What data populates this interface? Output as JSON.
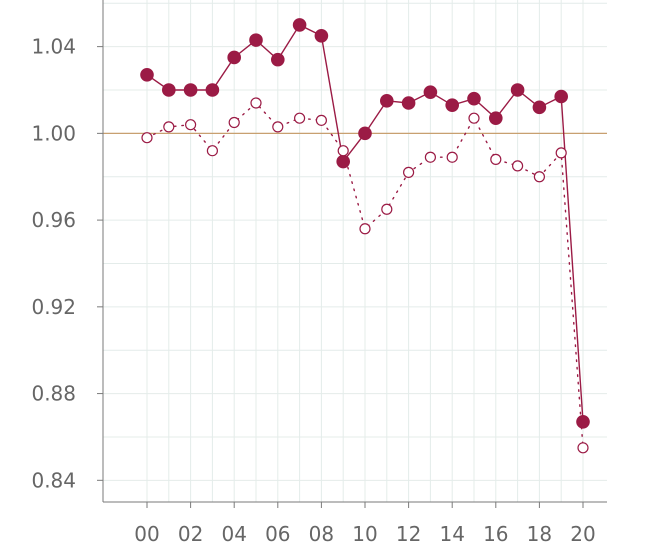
{
  "chart_data": {
    "type": "line",
    "x": [
      "2000",
      "2001",
      "2002",
      "2003",
      "2004",
      "2005",
      "2006",
      "2007",
      "2008",
      "2009",
      "2010",
      "2011",
      "2012",
      "2013",
      "2014",
      "2015",
      "2016",
      "2017",
      "2018",
      "2019",
      "2020"
    ],
    "x_tick_labels": [
      "00",
      "02",
      "04",
      "06",
      "08",
      "10",
      "12",
      "14",
      "16",
      "18",
      "20"
    ],
    "y_tick_labels": [
      "1.04",
      "1.00",
      "0.96",
      "0.92",
      "0.88",
      "0.84"
    ],
    "ylim": [
      0.83,
      1.0615
    ],
    "reference_line": 1.0,
    "grid": true,
    "series": [
      {
        "style": "solid",
        "marker": "filled-circle",
        "values": [
          1.027,
          1.02,
          1.02,
          1.02,
          1.035,
          1.043,
          1.034,
          1.05,
          1.045,
          0.987,
          1.0,
          1.015,
          1.014,
          1.019,
          1.013,
          1.016,
          1.007,
          1.02,
          1.012,
          1.017,
          0.867
        ]
      },
      {
        "style": "dotted",
        "marker": "open-circle",
        "values": [
          0.998,
          1.003,
          1.004,
          0.992,
          1.005,
          1.014,
          1.003,
          1.007,
          1.006,
          0.992,
          0.956,
          0.965,
          0.982,
          0.989,
          0.989,
          1.007,
          0.988,
          0.985,
          0.98,
          0.991,
          0.855
        ]
      }
    ]
  },
  "colors": {
    "series": "#9b1b45",
    "reference": "#c8a070",
    "grid": "#e4ecea",
    "axis": "#7a7a7a",
    "text": "#666666"
  }
}
